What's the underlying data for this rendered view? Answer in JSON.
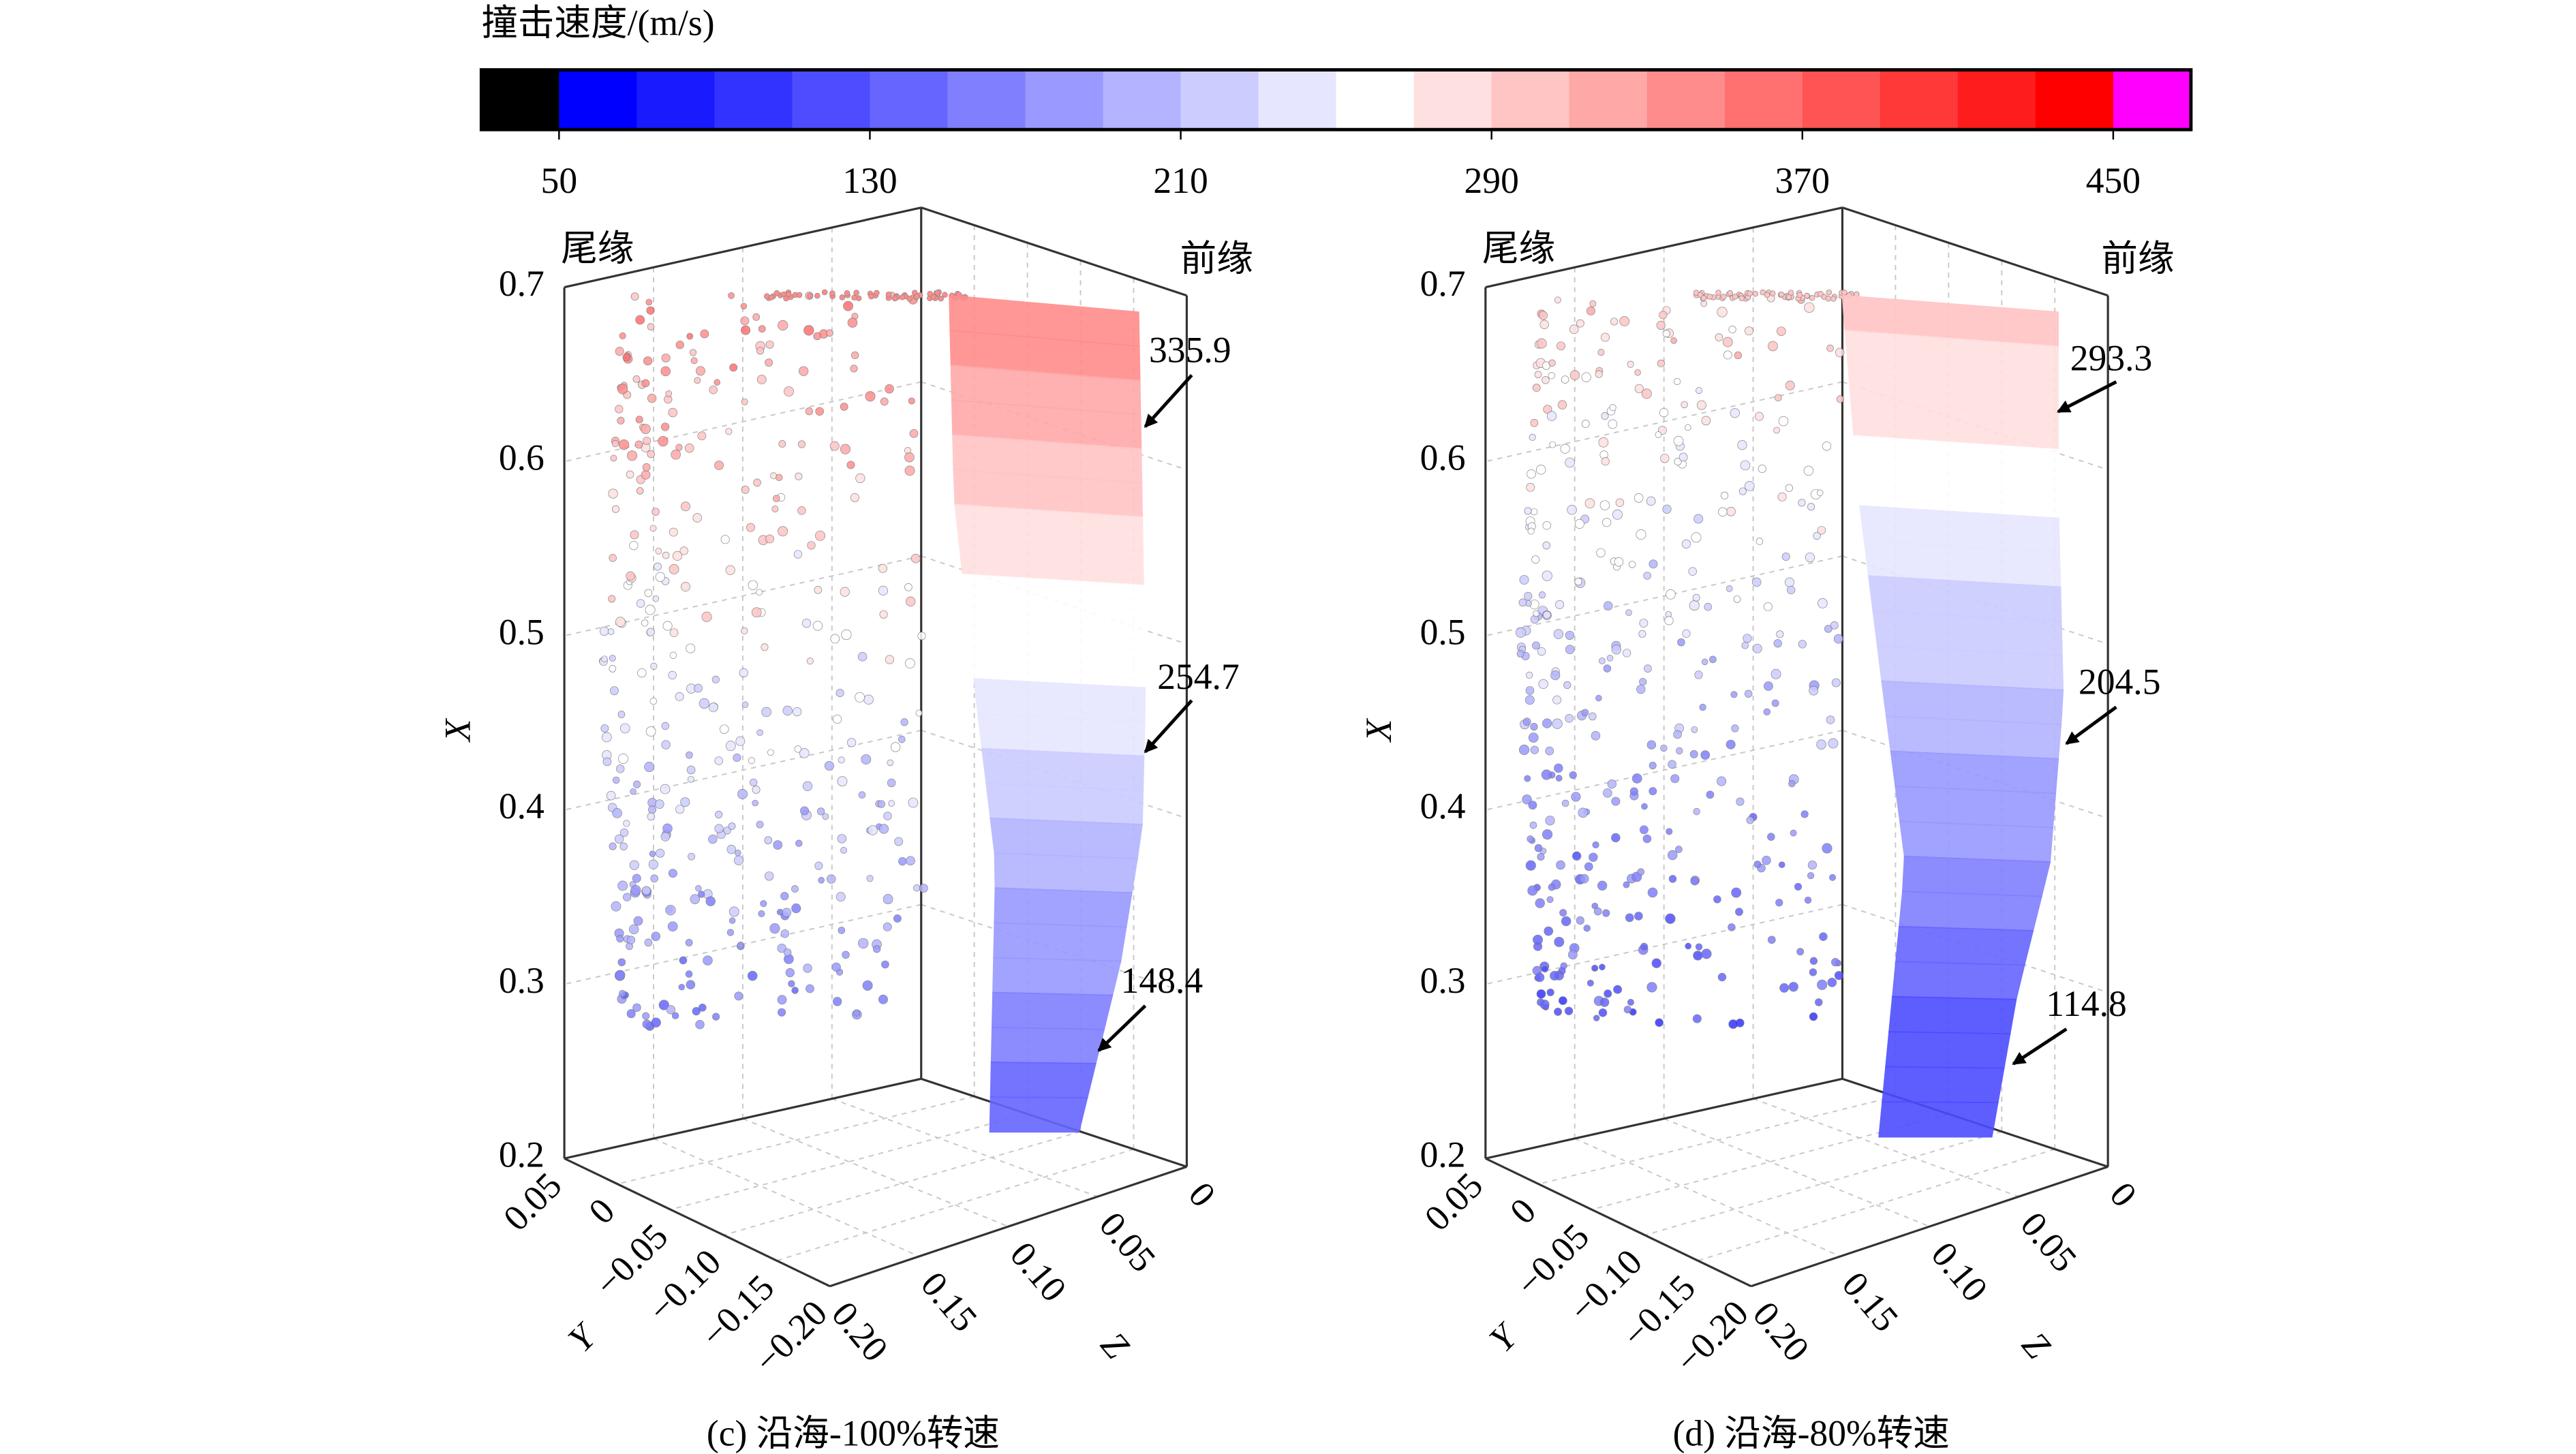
{
  "colorbar": {
    "title": "撞击速度/(m/s)",
    "lim": [
      30,
      470
    ],
    "ticks": [
      50,
      130,
      210,
      290,
      370,
      450
    ],
    "colors": [
      "#000000",
      "#0000ff",
      "#1a1aff",
      "#3333ff",
      "#4d4dff",
      "#6666ff",
      "#8080ff",
      "#9999ff",
      "#b3b3ff",
      "#ccccff",
      "#e6e6ff",
      "#ffffff",
      "#ffe0e0",
      "#ffc4c4",
      "#ffa8a8",
      "#ff8c8c",
      "#ff7070",
      "#ff5454",
      "#ff3838",
      "#ff1c1c",
      "#ff0000",
      "#ff00ff"
    ]
  },
  "chart_data": [
    {
      "type": "scatter3d",
      "caption": "(c) 沿海-100%转速",
      "trailing_label": "尾缘",
      "leading_label": "前缘",
      "xlabel": "X",
      "ylabel": "Y",
      "zlabel": "Z",
      "xlim": [
        0.2,
        0.7
      ],
      "xticks": [
        0.2,
        0.3,
        0.4,
        0.5,
        0.6,
        0.7
      ],
      "ylim": [
        -0.2,
        0.05
      ],
      "yticks": [
        0.05,
        0,
        {
          "value": -0.05,
          "label": "−0.05"
        },
        {
          "value": -0.1,
          "label": "−0.10"
        },
        {
          "value": -0.15,
          "label": "−0.15"
        },
        {
          "value": -0.2,
          "label": "−0.20"
        }
      ],
      "zlim": [
        0,
        0.2
      ],
      "zticks": [
        0,
        0.05,
        {
          "value": 0.1,
          "label": "0.10"
        },
        0.15,
        {
          "value": 0.2,
          "label": "0.20"
        }
      ],
      "annotations": [
        335.9,
        254.7,
        148.4
      ]
    },
    {
      "type": "scatter3d",
      "caption": "(d) 沿海-80%转速",
      "trailing_label": "尾缘",
      "leading_label": "前缘",
      "xlabel": "X",
      "ylabel": "Y",
      "zlabel": "Z",
      "xlim": [
        0.2,
        0.7
      ],
      "xticks": [
        0.2,
        0.3,
        0.4,
        0.5,
        0.6,
        0.7
      ],
      "ylim": [
        -0.2,
        0.05
      ],
      "yticks": [
        0.05,
        0,
        {
          "value": -0.05,
          "label": "−0.05"
        },
        {
          "value": -0.1,
          "label": "−0.10"
        },
        {
          "value": -0.15,
          "label": "−0.15"
        },
        {
          "value": -0.2,
          "label": "−0.20"
        }
      ],
      "zlim": [
        0,
        0.2
      ],
      "zticks": [
        0,
        0.05,
        {
          "value": 0.1,
          "label": "0.10"
        },
        0.15,
        {
          "value": 0.2,
          "label": "0.20"
        }
      ],
      "annotations": [
        293.3,
        204.5,
        114.8
      ]
    }
  ]
}
